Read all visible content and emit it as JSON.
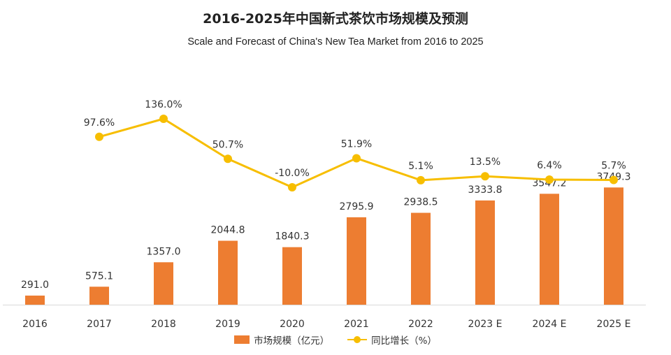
{
  "colors": {
    "bar": "#ED7D31",
    "line": "#F7BE00",
    "axis": "#D9D9D9",
    "text": "#333333"
  },
  "chart_data": {
    "type": "bar",
    "title": "2016-2025年中国新式茶饮市场规模及预测",
    "subtitle": "Scale and Forecast of China's New Tea Market from 2016 to 2025",
    "categories": [
      "2016",
      "2017",
      "2018",
      "2019",
      "2020",
      "2021",
      "2022",
      "2023 E",
      "2024 E",
      "2025 E"
    ],
    "series": [
      {
        "name": "市场规模（亿元）",
        "type": "bar",
        "values": [
          291.0,
          575.1,
          1357.0,
          2044.8,
          1840.3,
          2795.9,
          2938.5,
          3333.8,
          3547.2,
          3749.3
        ],
        "labels": [
          "291.0",
          "575.1",
          "1357.0",
          "2044.8",
          "1840.3",
          "2795.9",
          "2938.5",
          "3333.8",
          "3547.2",
          "3749.3"
        ]
      },
      {
        "name": "同比增长（%）",
        "type": "line",
        "values": [
          null,
          97.6,
          136.0,
          50.7,
          -10.0,
          51.9,
          5.1,
          13.5,
          6.4,
          5.7
        ],
        "labels": [
          "",
          "97.6%",
          "136.0%",
          "50.7%",
          "-10.0%",
          "51.9%",
          "5.1%",
          "13.5%",
          "6.4%",
          "5.7%"
        ]
      }
    ],
    "legend_position": "bottom",
    "grid": false
  }
}
